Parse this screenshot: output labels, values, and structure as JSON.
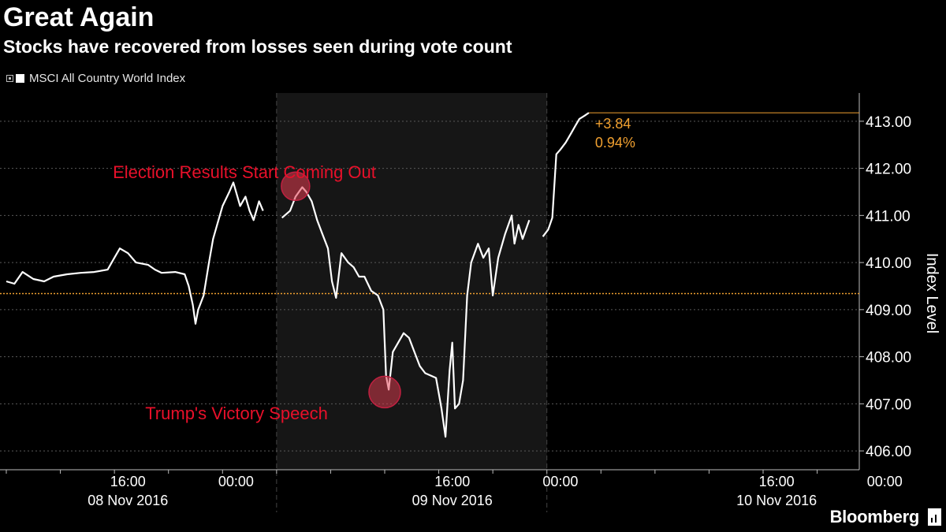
{
  "chart_data": {
    "type": "line",
    "title": "Great Again",
    "subtitle": "Stocks have recovered from losses seen during vote count",
    "legend": [
      "MSCI All Country World Index"
    ],
    "ylabel": "Index Level",
    "y_axis_side": "right",
    "ylim": [
      405.6,
      413.6
    ],
    "yticks": [
      "406.00",
      "407.00",
      "408.00",
      "409.00",
      "410.00",
      "411.00",
      "412.00",
      "413.00"
    ],
    "xlim": [
      0,
      63
    ],
    "x_units": "hours since 08 Nov 2016 07:00",
    "xticks": [
      {
        "x": 9,
        "label": "16:00"
      },
      {
        "x": 17,
        "label": "00:00"
      },
      {
        "x": 33,
        "label": "16:00"
      },
      {
        "x": 41,
        "label": "00:00"
      },
      {
        "x": 57,
        "label": "16:00"
      },
      {
        "x": 65,
        "label": "00:00"
      }
    ],
    "date_labels": [
      {
        "x": 9,
        "label": "08 Nov 2016"
      },
      {
        "x": 33,
        "label": "09 Nov 2016"
      },
      {
        "x": 57,
        "label": "10 Nov 2016"
      }
    ],
    "shaded_region": [
      20,
      40
    ],
    "reference_line": 409.34,
    "last_value_line": 413.18,
    "change_label": "+3.84",
    "change_pct_label": "0.94%",
    "annotations": [
      {
        "text": "Election Results Start Coming Out",
        "x": 21.4,
        "y": 411.62
      },
      {
        "text": "Trump's Victory Speech",
        "x": 28.0,
        "y": 407.25
      }
    ],
    "series": [
      {
        "name": "MSCI All Country World Index",
        "segments": [
          [
            [
              0.0,
              409.6
            ],
            [
              0.6,
              409.55
            ],
            [
              1.2,
              409.8
            ],
            [
              2.0,
              409.65
            ],
            [
              2.8,
              409.6
            ],
            [
              3.5,
              409.7
            ],
            [
              4.5,
              409.75
            ],
            [
              5.5,
              409.78
            ],
            [
              6.5,
              409.8
            ],
            [
              7.5,
              409.85
            ],
            [
              8.0,
              410.1
            ],
            [
              8.4,
              410.3
            ],
            [
              9.0,
              410.2
            ],
            [
              9.6,
              410.0
            ],
            [
              10.5,
              409.95
            ],
            [
              11.0,
              409.85
            ],
            [
              11.5,
              409.78
            ],
            [
              12.5,
              409.8
            ],
            [
              13.2,
              409.75
            ],
            [
              13.5,
              409.5
            ],
            [
              13.8,
              409.1
            ],
            [
              14.0,
              408.7
            ],
            [
              14.2,
              409.0
            ],
            [
              14.6,
              409.3
            ],
            [
              15.0,
              410.0
            ],
            [
              15.3,
              410.5
            ],
            [
              15.6,
              410.8
            ],
            [
              16.0,
              411.2
            ],
            [
              16.5,
              411.5
            ],
            [
              16.8,
              411.7
            ],
            [
              17.3,
              411.2
            ],
            [
              17.7,
              411.4
            ],
            [
              18.0,
              411.1
            ],
            [
              18.3,
              410.9
            ],
            [
              18.7,
              411.3
            ],
            [
              19.0,
              411.1
            ]
          ],
          [
            [
              20.4,
              410.95
            ],
            [
              21.0,
              411.1
            ],
            [
              21.4,
              411.4
            ],
            [
              21.9,
              411.6
            ],
            [
              22.2,
              411.5
            ],
            [
              22.6,
              411.3
            ],
            [
              23.0,
              410.9
            ],
            [
              23.4,
              410.6
            ],
            [
              23.8,
              410.3
            ],
            [
              24.1,
              409.6
            ],
            [
              24.4,
              409.25
            ],
            [
              24.8,
              410.2
            ],
            [
              25.3,
              410.0
            ],
            [
              25.7,
              409.9
            ],
            [
              26.1,
              409.7
            ],
            [
              26.5,
              409.7
            ],
            [
              27.0,
              409.4
            ],
            [
              27.5,
              409.3
            ],
            [
              27.9,
              409.0
            ],
            [
              28.1,
              407.6
            ],
            [
              28.3,
              407.3
            ],
            [
              28.6,
              408.1
            ],
            [
              29.0,
              408.3
            ],
            [
              29.4,
              408.5
            ],
            [
              29.8,
              408.4
            ],
            [
              30.2,
              408.1
            ],
            [
              30.6,
              407.8
            ],
            [
              31.0,
              407.65
            ],
            [
              31.4,
              407.6
            ],
            [
              31.8,
              407.55
            ],
            [
              32.2,
              406.9
            ],
            [
              32.5,
              406.3
            ],
            [
              32.8,
              407.7
            ],
            [
              33.0,
              408.3
            ],
            [
              33.2,
              406.9
            ],
            [
              33.5,
              407.0
            ],
            [
              33.8,
              407.5
            ],
            [
              34.1,
              409.3
            ],
            [
              34.4,
              410.0
            ],
            [
              34.9,
              410.4
            ],
            [
              35.3,
              410.1
            ],
            [
              35.7,
              410.3
            ],
            [
              36.0,
              409.3
            ],
            [
              36.4,
              410.1
            ],
            [
              36.9,
              410.6
            ],
            [
              37.4,
              411.0
            ],
            [
              37.6,
              410.4
            ],
            [
              37.9,
              410.8
            ],
            [
              38.2,
              410.5
            ],
            [
              38.7,
              410.9
            ]
          ],
          [
            [
              39.7,
              410.55
            ],
            [
              40.1,
              410.7
            ],
            [
              40.4,
              410.95
            ],
            [
              40.7,
              412.3
            ],
            [
              41.0,
              412.4
            ],
            [
              41.4,
              412.55
            ],
            [
              41.8,
              412.75
            ],
            [
              42.1,
              412.9
            ],
            [
              42.4,
              413.05
            ],
            [
              42.8,
              413.12
            ],
            [
              43.1,
              413.18
            ]
          ]
        ]
      }
    ]
  },
  "footer": {
    "brand": "Bloomberg"
  }
}
